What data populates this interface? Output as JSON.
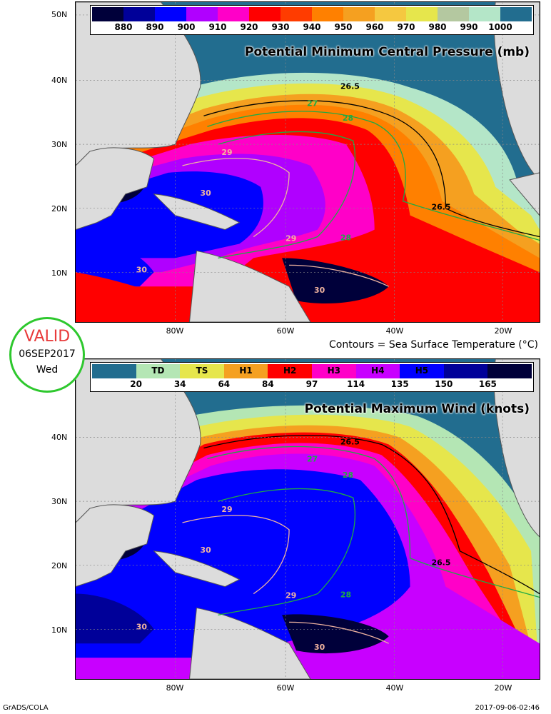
{
  "top_panel": {
    "title": "Potential Minimum Central Pressure (mb)",
    "colorbar": [
      {
        "color": "#00003a",
        "tick": "880"
      },
      {
        "color": "#000099",
        "tick": "890"
      },
      {
        "color": "#0000ff",
        "tick": "900"
      },
      {
        "color": "#b000ff",
        "tick": "910"
      },
      {
        "color": "#ff00c8",
        "tick": "920"
      },
      {
        "color": "#ff0000",
        "tick": "930"
      },
      {
        "color": "#ff3c00",
        "tick": "940"
      },
      {
        "color": "#ff8000",
        "tick": "950"
      },
      {
        "color": "#f5a020",
        "tick": "960"
      },
      {
        "color": "#f5c840",
        "tick": "970"
      },
      {
        "color": "#e6e64c",
        "tick": "980"
      },
      {
        "color": "#b4c8a0",
        "tick": "990"
      },
      {
        "color": "#b4e6c8",
        "tick": "1000"
      },
      {
        "color": "#226d8f",
        "tick": ""
      }
    ]
  },
  "bottom_panel": {
    "title": "Potential Maximum Wind (knots)",
    "colorbar": [
      {
        "color": "#226d8f",
        "label": "",
        "tick": "20"
      },
      {
        "color": "#b4e6b4",
        "label": "TD",
        "tick": "34"
      },
      {
        "color": "#e6e64c",
        "label": "TS",
        "tick": "64"
      },
      {
        "color": "#f5a020",
        "label": "H1",
        "tick": "84"
      },
      {
        "color": "#ff0000",
        "label": "H2",
        "tick": "97"
      },
      {
        "color": "#ff00c8",
        "label": "H3",
        "tick": "114"
      },
      {
        "color": "#c800ff",
        "label": "H4",
        "tick": "135"
      },
      {
        "color": "#0000ff",
        "label": "H5",
        "tick": "150"
      },
      {
        "color": "#000099",
        "label": "",
        "tick": "165"
      },
      {
        "color": "#00003a",
        "label": "",
        "tick": ""
      }
    ]
  },
  "latitude_labels": [
    "50N",
    "40N",
    "30N",
    "20N",
    "10N"
  ],
  "longitude_labels": [
    "80W",
    "60W",
    "40W",
    "20W"
  ],
  "contour_labels": [
    "26.5",
    "27",
    "28",
    "29",
    "30"
  ],
  "valid_badge": {
    "label": "VALID",
    "date": "06SEP2017",
    "weekday": "Wed"
  },
  "sst_note": "Contours = Sea Surface Temperature (°C)",
  "footer": {
    "credit": "GrADS/COLA",
    "timestamp": "2017-09-06-02:46"
  },
  "colors": {
    "ocean_cold": "#226d8f",
    "land": "#dcdcdc",
    "badge_ring": "#2ec82e",
    "badge_text": "#e83a3a"
  }
}
